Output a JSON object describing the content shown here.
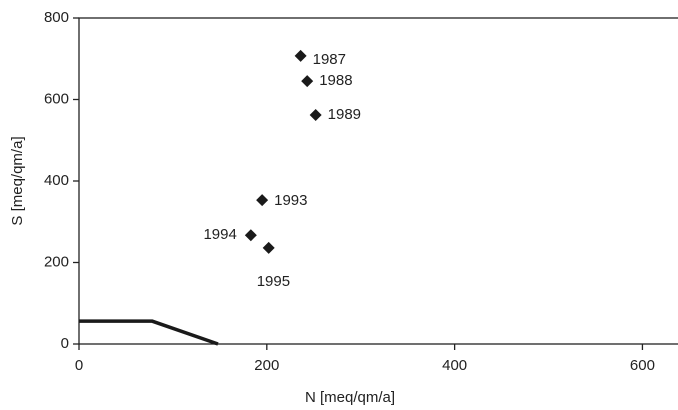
{
  "chart_data": {
    "type": "scatter",
    "x_label": "N [meq/qm/a]",
    "y_label": "S [meq/qm/a]",
    "labels": [
      "1987",
      "1988",
      "1989",
      "1993",
      "1994",
      "1995"
    ],
    "x": [
      236,
      243,
      252,
      195,
      183,
      202
    ],
    "y": [
      707,
      645,
      562,
      353,
      267,
      236
    ],
    "color": "#1a1a1a",
    "boundary": {
      "x": [
        0,
        78,
        148
      ],
      "y": [
        56,
        56,
        0
      ],
      "color": "#1a1a1a"
    },
    "xlim": [
      0,
      640
    ],
    "ylim": [
      0,
      800
    ],
    "xticks": [
      0,
      200,
      400,
      600
    ],
    "yticks": [
      0,
      200,
      400,
      600,
      800
    ]
  }
}
